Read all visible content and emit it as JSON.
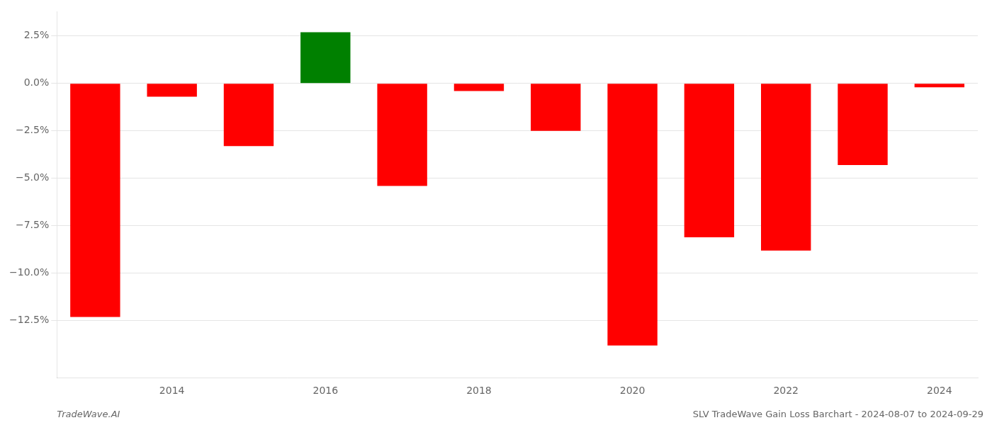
{
  "chart_data": {
    "type": "bar",
    "categories": [
      null,
      "2014",
      null,
      "2016",
      null,
      "2018",
      null,
      "2020",
      null,
      "2022",
      null,
      "2024"
    ],
    "values": [
      -12.3,
      -0.7,
      -3.3,
      2.7,
      -5.4,
      -0.4,
      -2.5,
      -13.8,
      -8.1,
      -8.8,
      -4.3,
      -0.2
    ],
    "colors": [
      "#ff0000",
      "#ff0000",
      "#ff0000",
      "#008000",
      "#ff0000",
      "#ff0000",
      "#ff0000",
      "#ff0000",
      "#ff0000",
      "#ff0000",
      "#ff0000",
      "#ff0000"
    ],
    "ylim": [
      -15.5,
      3.8
    ],
    "yticks": [
      {
        "value": 2.5,
        "label": "2.5%"
      },
      {
        "value": 0.0,
        "label": "0.0%"
      },
      {
        "value": -2.5,
        "label": "−2.5%"
      },
      {
        "value": -5.0,
        "label": "−5.0%"
      },
      {
        "value": -7.5,
        "label": "−7.5%"
      },
      {
        "value": -10.0,
        "label": "−10.0%"
      },
      {
        "value": -12.5,
        "label": "−12.5%"
      }
    ],
    "grid": true,
    "annotations": [
      "TradeWave.AI",
      "SLV TradeWave Gain Loss Barchart - 2024-08-07 to 2024-09-29"
    ]
  }
}
